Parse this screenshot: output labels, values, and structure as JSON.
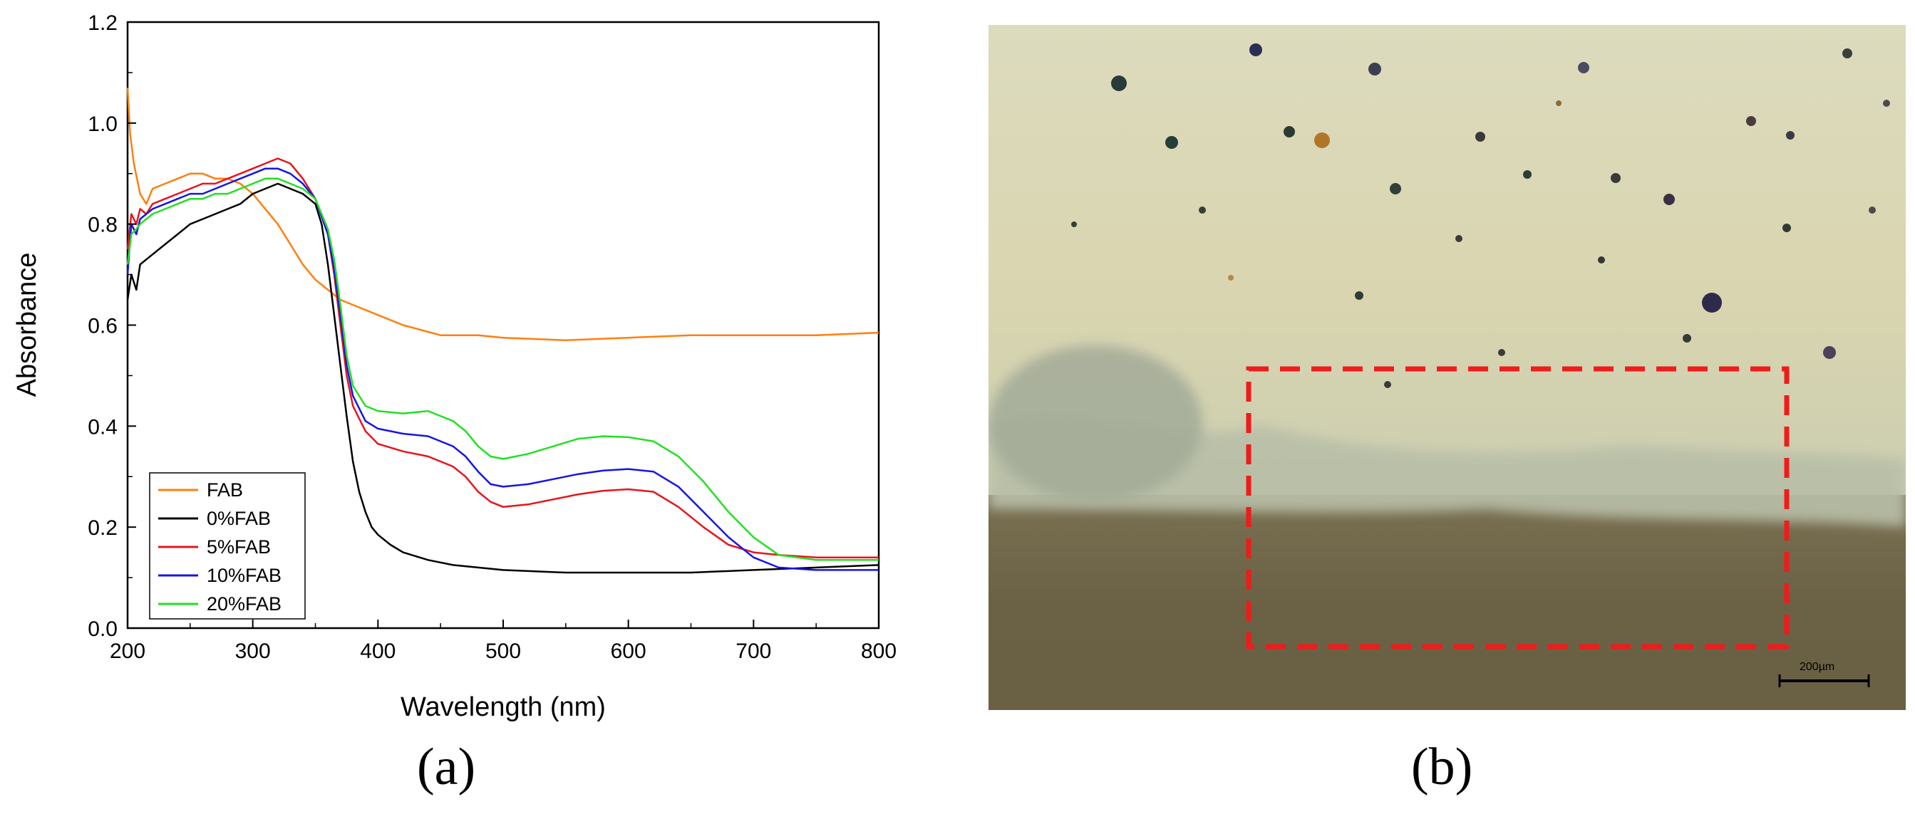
{
  "panels": {
    "a_label": "(a)",
    "b_label": "(b)"
  },
  "chart_data": {
    "type": "line",
    "title": "",
    "xlabel": "Wavelength (nm)",
    "ylabel": "Absorbance",
    "xlim": [
      200,
      800
    ],
    "ylim": [
      0.0,
      1.2
    ],
    "xticks": [
      200,
      300,
      400,
      500,
      600,
      700,
      800
    ],
    "yticks": [
      0.0,
      0.2,
      0.4,
      0.6,
      0.8,
      1.0,
      1.2
    ],
    "xtick_labels": [
      "200",
      "300",
      "400",
      "500",
      "600",
      "700",
      "800"
    ],
    "ytick_labels": [
      "0.0",
      "0.2",
      "0.4",
      "0.6",
      "0.8",
      "1.0",
      "1.2"
    ],
    "grid": false,
    "legend_position": "bottom-left",
    "series": [
      {
        "name": "FAB",
        "color": "#ff7f0e",
        "x": [
          200,
          202,
          205,
          210,
          215,
          220,
          230,
          240,
          250,
          260,
          270,
          280,
          290,
          300,
          310,
          320,
          330,
          340,
          350,
          360,
          370,
          380,
          400,
          420,
          450,
          480,
          500,
          550,
          600,
          650,
          700,
          750,
          800
        ],
        "y": [
          1.07,
          0.98,
          0.92,
          0.86,
          0.84,
          0.87,
          0.88,
          0.89,
          0.9,
          0.9,
          0.89,
          0.89,
          0.88,
          0.86,
          0.83,
          0.8,
          0.76,
          0.72,
          0.69,
          0.67,
          0.65,
          0.64,
          0.62,
          0.6,
          0.58,
          0.58,
          0.575,
          0.57,
          0.575,
          0.58,
          0.58,
          0.58,
          0.585
        ]
      },
      {
        "name": "0%FAB",
        "color": "#000000",
        "x": [
          200,
          203,
          207,
          210,
          215,
          220,
          230,
          240,
          250,
          260,
          270,
          280,
          290,
          300,
          310,
          320,
          330,
          340,
          350,
          355,
          360,
          365,
          370,
          375,
          380,
          385,
          390,
          395,
          400,
          410,
          420,
          440,
          460,
          480,
          500,
          550,
          600,
          650,
          700,
          750,
          800
        ],
        "y": [
          0.65,
          0.7,
          0.67,
          0.72,
          0.73,
          0.74,
          0.76,
          0.78,
          0.8,
          0.81,
          0.82,
          0.83,
          0.84,
          0.86,
          0.87,
          0.88,
          0.87,
          0.86,
          0.84,
          0.8,
          0.72,
          0.62,
          0.52,
          0.42,
          0.33,
          0.27,
          0.23,
          0.2,
          0.185,
          0.165,
          0.15,
          0.135,
          0.125,
          0.12,
          0.115,
          0.11,
          0.11,
          0.11,
          0.115,
          0.12,
          0.125
        ]
      },
      {
        "name": "5%FAB",
        "color": "#e8141c",
        "x": [
          200,
          203,
          207,
          210,
          215,
          220,
          230,
          240,
          250,
          260,
          270,
          280,
          290,
          300,
          310,
          320,
          330,
          340,
          350,
          360,
          365,
          370,
          375,
          380,
          390,
          400,
          420,
          440,
          460,
          470,
          480,
          490,
          500,
          520,
          540,
          560,
          580,
          600,
          620,
          640,
          660,
          680,
          700,
          720,
          750,
          800
        ],
        "y": [
          0.75,
          0.82,
          0.8,
          0.83,
          0.82,
          0.84,
          0.85,
          0.86,
          0.87,
          0.88,
          0.88,
          0.89,
          0.9,
          0.91,
          0.92,
          0.93,
          0.92,
          0.89,
          0.85,
          0.78,
          0.7,
          0.6,
          0.5,
          0.44,
          0.39,
          0.365,
          0.35,
          0.34,
          0.32,
          0.3,
          0.27,
          0.25,
          0.24,
          0.245,
          0.255,
          0.265,
          0.272,
          0.275,
          0.27,
          0.24,
          0.2,
          0.165,
          0.15,
          0.145,
          0.14,
          0.14
        ]
      },
      {
        "name": "10%FAB",
        "color": "#1515e6",
        "x": [
          200,
          203,
          207,
          210,
          215,
          220,
          230,
          240,
          250,
          260,
          270,
          280,
          290,
          300,
          310,
          320,
          330,
          340,
          350,
          360,
          365,
          370,
          375,
          380,
          390,
          400,
          420,
          440,
          460,
          470,
          480,
          490,
          500,
          520,
          540,
          560,
          580,
          600,
          620,
          640,
          660,
          680,
          700,
          720,
          750,
          800
        ],
        "y": [
          0.7,
          0.8,
          0.78,
          0.81,
          0.82,
          0.83,
          0.84,
          0.85,
          0.86,
          0.86,
          0.87,
          0.88,
          0.89,
          0.9,
          0.91,
          0.91,
          0.9,
          0.88,
          0.85,
          0.78,
          0.71,
          0.62,
          0.52,
          0.46,
          0.41,
          0.395,
          0.385,
          0.38,
          0.36,
          0.34,
          0.31,
          0.285,
          0.28,
          0.285,
          0.295,
          0.305,
          0.312,
          0.315,
          0.31,
          0.28,
          0.23,
          0.18,
          0.14,
          0.12,
          0.115,
          0.115
        ]
      },
      {
        "name": "20%FAB",
        "color": "#22e022",
        "x": [
          200,
          203,
          207,
          210,
          215,
          220,
          230,
          240,
          250,
          260,
          270,
          280,
          290,
          300,
          310,
          320,
          330,
          340,
          350,
          360,
          365,
          370,
          375,
          380,
          390,
          400,
          420,
          440,
          460,
          470,
          480,
          490,
          500,
          520,
          540,
          560,
          580,
          600,
          620,
          640,
          660,
          680,
          700,
          720,
          750,
          800
        ],
        "y": [
          0.72,
          0.78,
          0.79,
          0.8,
          0.81,
          0.82,
          0.83,
          0.84,
          0.85,
          0.85,
          0.86,
          0.86,
          0.87,
          0.88,
          0.89,
          0.89,
          0.88,
          0.87,
          0.85,
          0.79,
          0.73,
          0.64,
          0.54,
          0.48,
          0.44,
          0.43,
          0.425,
          0.43,
          0.41,
          0.39,
          0.36,
          0.34,
          0.335,
          0.345,
          0.36,
          0.375,
          0.38,
          0.378,
          0.37,
          0.34,
          0.29,
          0.23,
          0.18,
          0.145,
          0.135,
          0.135
        ]
      }
    ]
  },
  "micrograph": {
    "scale_bar_label": "200µm",
    "colors": {
      "upper_layer": "#d9d6b4",
      "lower_layer": "#6e6446",
      "roi_box": "#ee1c1c"
    }
  }
}
